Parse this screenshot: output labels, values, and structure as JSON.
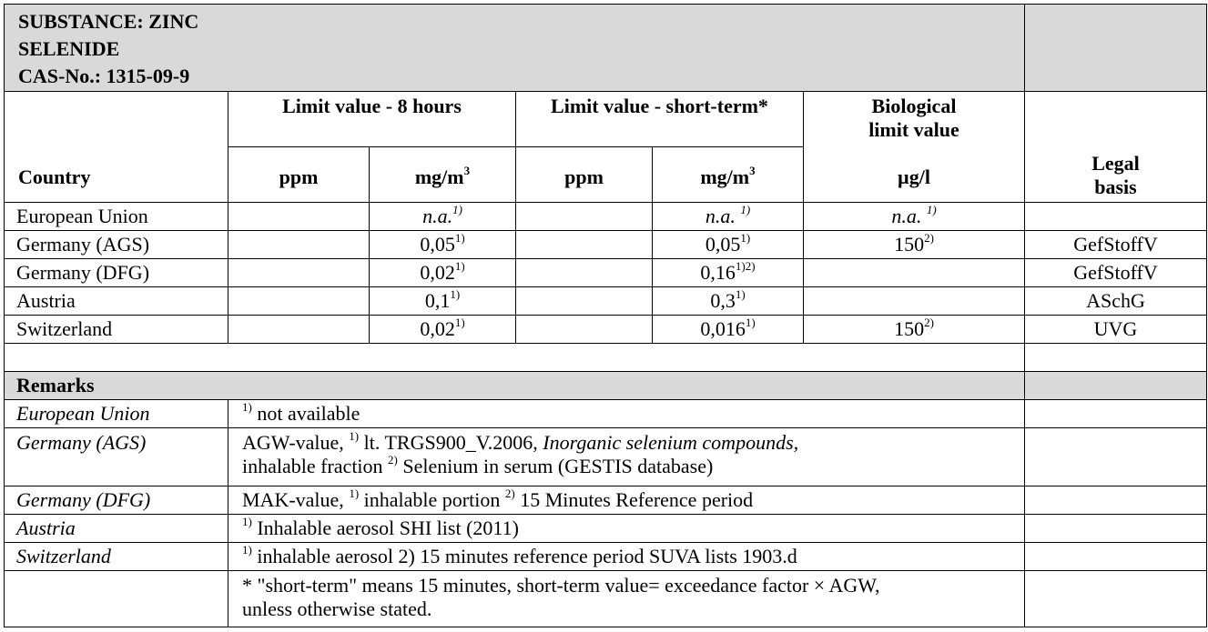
{
  "substance": {
    "line1": "SUBSTANCE: ZINC",
    "line2": "SELENIDE",
    "cas": "CAS-No.: 1315-09-9"
  },
  "header": {
    "country": "Country",
    "limit_8h": "Limit value   - 8 hours",
    "limit_short": "Limit value   - short-term*",
    "biological_line1": "Biological",
    "biological_line2": "limit value",
    "ppm_1": "ppm",
    "mgm3_1": "mg/m",
    "ppm_2": "ppm",
    "mgm3_2": "mg/m",
    "cube": "3",
    "ugl": "µg/l",
    "legal_line1": "Legal",
    "legal_line2": "basis"
  },
  "rows": [
    {
      "country": "European Union",
      "ppm8": "",
      "mg8": "n.a.",
      "mg8_sup": "1)",
      "ppms": "",
      "mgs": "n.a. ",
      "mgs_sup": "1)",
      "bio": "n.a. ",
      "bio_sup": "1)",
      "legal": ""
    },
    {
      "country": "Germany (AGS)",
      "ppm8": "",
      "mg8": "0,05",
      "mg8_sup": "1)",
      "ppms": "",
      "mgs": "0,05",
      "mgs_sup": "1)",
      "bio": "150",
      "bio_sup": "2)",
      "legal": "GefStoffV"
    },
    {
      "country": "Germany (DFG)",
      "ppm8": "",
      "mg8": "0,02",
      "mg8_sup": "1)",
      "ppms": "",
      "mgs": "0,16",
      "mgs_sup": "1)2)",
      "bio": "",
      "bio_sup": "",
      "legal": "GefStoffV"
    },
    {
      "country": "Austria",
      "ppm8": "",
      "mg8": "0,1",
      "mg8_sup": "1)",
      "ppms": "",
      "mgs": "0,3",
      "mgs_sup": "1)",
      "bio": "",
      "bio_sup": "",
      "legal": "ASchG"
    },
    {
      "country": "Switzerland",
      "ppm8": "",
      "mg8": "0,02",
      "mg8_sup": "1)",
      "ppms": "",
      "mgs": "0,016",
      "mgs_sup": "1)",
      "bio": "150",
      "bio_sup": "2)",
      "legal": "UVG"
    }
  ],
  "remarks_title": "Remarks",
  "remarks": [
    {
      "country": "European Union",
      "parts": [
        {
          "t": "sup",
          "v": "1)"
        },
        {
          "t": "n",
          "v": " not available"
        }
      ]
    },
    {
      "country": "Germany (AGS)",
      "parts": [
        {
          "t": "n",
          "v": "AGW-value, "
        },
        {
          "t": "sup",
          "v": "1)"
        },
        {
          "t": "n",
          "v": " lt. TRGS900_V.2006, "
        },
        {
          "t": "i",
          "v": "Inorganic selenium compounds,"
        },
        {
          "t": "br",
          "v": ""
        },
        {
          "t": "n",
          "v": "inhalable fraction "
        },
        {
          "t": "sup",
          "v": "2)"
        },
        {
          "t": "n",
          "v": " Selenium in serum (GESTIS database)"
        }
      ]
    },
    {
      "country": "Germany (DFG)",
      "parts": [
        {
          "t": "n",
          "v": "MAK-value, "
        },
        {
          "t": "sup",
          "v": "1)"
        },
        {
          "t": "n",
          "v": " inhalable portion "
        },
        {
          "t": "sup",
          "v": "2)"
        },
        {
          "t": "n",
          "v": " 15 Minutes Reference period"
        }
      ]
    },
    {
      "country": "Austria",
      "parts": [
        {
          "t": "sup",
          "v": "1)"
        },
        {
          "t": "n",
          "v": " Inhalable aerosol SHI list (2011)"
        }
      ]
    },
    {
      "country": "Switzerland",
      "parts": [
        {
          "t": "sup",
          "v": "1)"
        },
        {
          "t": "n",
          "v": " inhalable aerosol 2) 15 minutes reference period SUVA lists 1903.d"
        }
      ]
    },
    {
      "country": "",
      "parts": [
        {
          "t": "n",
          "v": "* \"short-term\" means 15 minutes, short-term value= exceedance factor × AGW,"
        },
        {
          "t": "br",
          "v": ""
        },
        {
          "t": "n",
          "v": "unless otherwise stated."
        }
      ]
    }
  ]
}
